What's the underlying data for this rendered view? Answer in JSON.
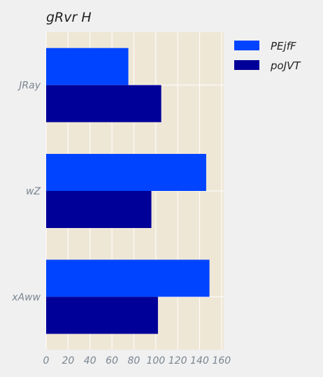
{
  "chart_data": {
    "type": "bar",
    "orientation": "horizontal",
    "title": "gRvr H",
    "categories": [
      "JRay",
      "wZ",
      "xAww"
    ],
    "series": [
      {
        "name": "PEjfF",
        "values": [
          75,
          146,
          149
        ],
        "color": "#0044ff"
      },
      {
        "name": "poJVT",
        "values": [
          105,
          96,
          102
        ],
        "color": "#000099"
      }
    ],
    "xlabel": "",
    "ylabel": "",
    "xlim": [
      0,
      162
    ],
    "xticks": [
      0,
      20,
      40,
      60,
      80,
      100,
      120,
      140,
      160
    ],
    "grid": true,
    "legend_position": "outside-right",
    "colors": {
      "background": "#f0f0f0",
      "plot_background": "#efe7d6",
      "grid": "#ffffff",
      "tick_text": "#7a8590"
    }
  }
}
